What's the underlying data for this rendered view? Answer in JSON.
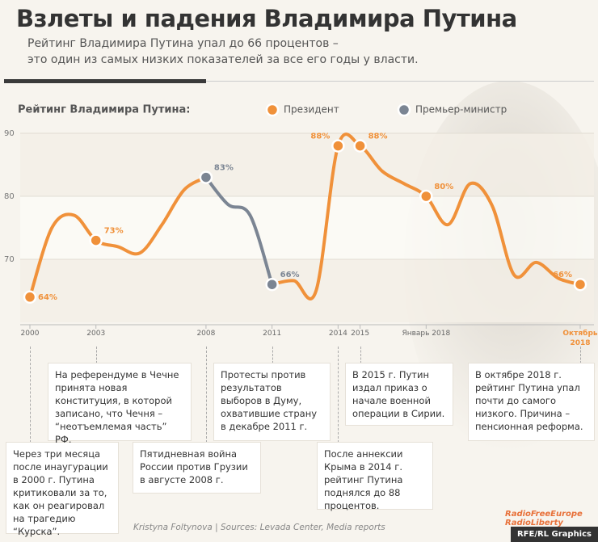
{
  "header": {
    "title": "Взлеты и падения Владимира Путина",
    "subtitle_1": "Рейтинг Владимира Путина упал до 66 процентов –",
    "subtitle_2": "это один из самых низких показателей за все его годы у власти."
  },
  "chart_data": {
    "type": "line",
    "legend_title": "Рейтинг Владимира Путина:",
    "categories": [
      "2000",
      null,
      null,
      "2003",
      null,
      null,
      null,
      null,
      "2008",
      null,
      null,
      "2011",
      null,
      null,
      "2014",
      "2015",
      null,
      null,
      "Январь 2018",
      null,
      null,
      null,
      null,
      null,
      null,
      "Октябрь 2018"
    ],
    "series": [
      {
        "name": "Президент",
        "color": "#f0913a",
        "values": [
          64,
          75,
          77,
          73,
          72,
          71,
          75.5,
          81,
          83,
          null,
          null,
          66,
          66.6,
          65,
          88,
          88,
          84,
          82,
          80,
          75.5,
          82,
          78.5,
          67.5,
          69.5,
          67,
          66
        ],
        "value_labels": [
          "64%",
          null,
          null,
          "73%",
          null,
          null,
          null,
          null,
          null,
          null,
          null,
          null,
          null,
          null,
          "88%",
          "88%",
          null,
          null,
          "80%",
          null,
          null,
          null,
          null,
          null,
          null,
          "66%"
        ]
      },
      {
        "name": "Премьер-министр",
        "color": "#7b8593",
        "values": [
          null,
          null,
          null,
          null,
          null,
          null,
          null,
          null,
          83,
          78.7,
          77,
          66,
          null,
          null,
          null,
          null,
          null,
          null,
          null,
          null,
          null,
          null,
          null,
          null,
          null,
          null
        ],
        "value_labels": [
          null,
          null,
          null,
          null,
          null,
          null,
          null,
          null,
          "83%",
          null,
          null,
          "66%",
          null,
          null,
          null,
          null,
          null,
          null,
          null,
          null,
          null,
          null,
          null,
          null,
          null,
          null
        ]
      }
    ],
    "ylim": [
      60,
      90
    ],
    "yticks": [
      70,
      80,
      90
    ],
    "grid": true
  },
  "annotations": [
    "Через три месяца после инаугурации в 2000 г. Путина критиковали за то, как он реагировал на трагедию “Курска”.",
    "На референдуме в Чечне принята новая конституция, в которой записано, что Чечня – “неотъемлемая часть” РФ.",
    "Пятидневная война России против Грузии в августе 2008 г.",
    "Протесты против результатов выборов в Думу, охватившие страну в декабре 2011 г.",
    "После аннексии Крыма в 2014 г. рейтинг Путина поднялся до 88 процентов.",
    "В 2015 г. Путин издал приказ о начале военной операции в Сирии.",
    "В октябре 2018 г. рейтинг Путина упал почти до самого низкого. Причина – пенсионная реформа."
  ],
  "footer": {
    "credit": "Kristyna Foltynova | Sources: Levada Center, Media reports",
    "logo_1": "RadioFreeEurope",
    "logo_2": "RadioLiberty",
    "badge": "RFE/RL Graphics"
  }
}
